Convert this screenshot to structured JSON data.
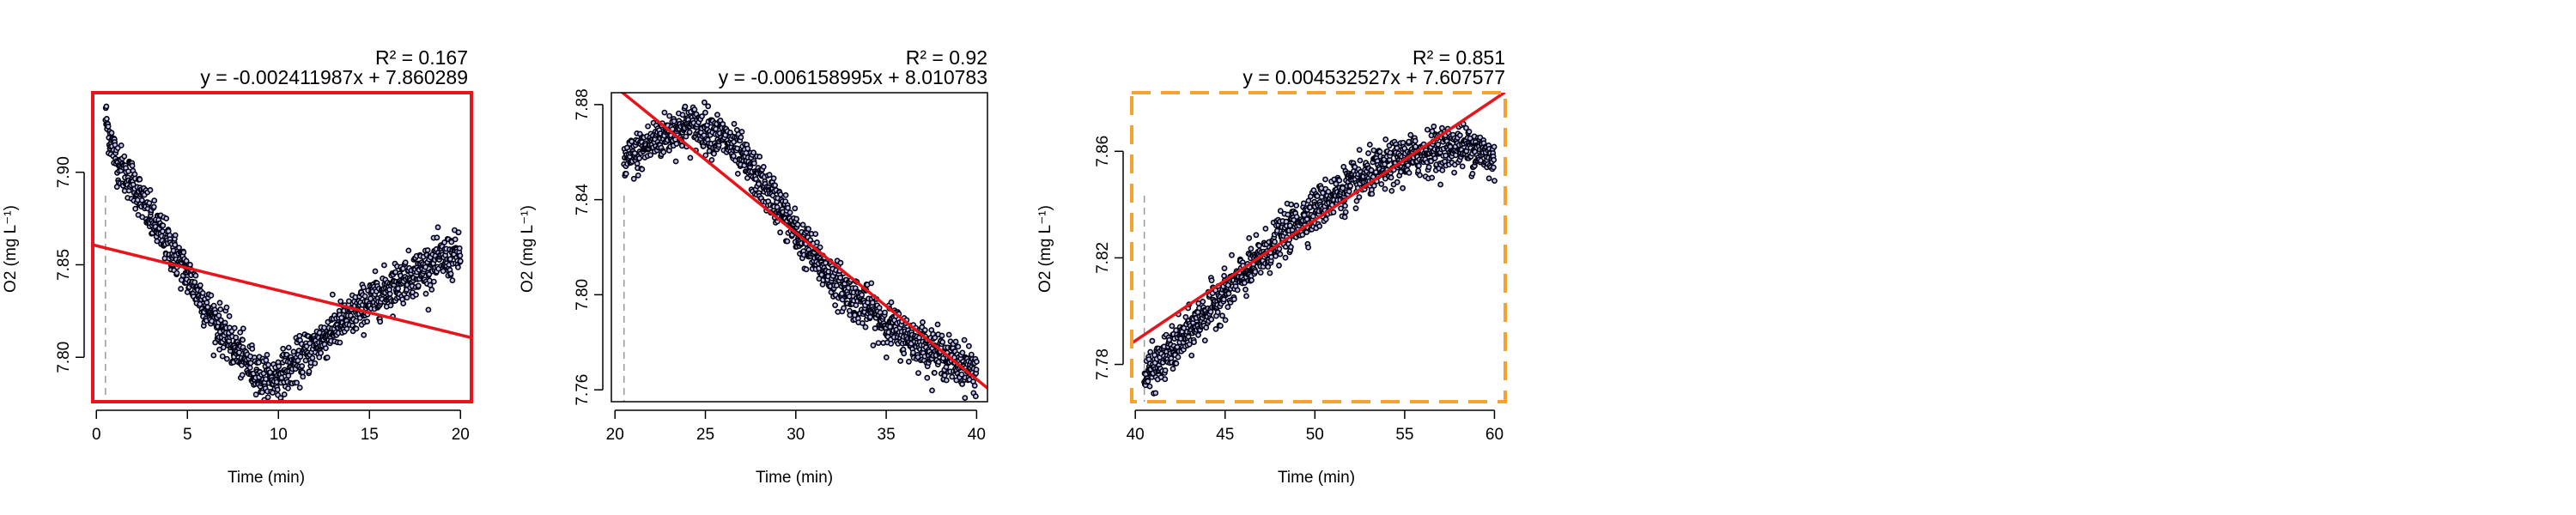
{
  "chart_data": [
    {
      "type": "scatter",
      "title": "",
      "xlabel": "Time (min)",
      "ylabel": "O2 (mg L⁻¹)",
      "xlim": [
        -0.2,
        20.6
      ],
      "ylim": [
        7.776,
        7.943
      ],
      "xticks": [
        0,
        5,
        10,
        15,
        20
      ],
      "yticks": [
        7.8,
        7.85,
        7.9
      ],
      "ytick_labels": [
        "7.80",
        "7.85",
        "7.90"
      ],
      "r2_label": "R² = 0.167",
      "equation_label": "y = -0.002411987x + 7.860289",
      "fit": {
        "slope": -0.002411987,
        "intercept": 7.860289
      },
      "vline_x": 0.5,
      "frame": {
        "color": "#e8141b",
        "style": "solid"
      },
      "series": [
        {
          "x": [
            0.5,
            0.6,
            1,
            1.5,
            2,
            3,
            4,
            5,
            6,
            7,
            8,
            9,
            9.5,
            10,
            11,
            12,
            13,
            14,
            15,
            16,
            17,
            18,
            19,
            20
          ],
          "y": [
            7.93,
            7.925,
            7.91,
            7.9,
            7.895,
            7.875,
            7.86,
            7.845,
            7.828,
            7.813,
            7.8,
            7.79,
            7.787,
            7.79,
            7.797,
            7.806,
            7.815,
            7.822,
            7.83,
            7.837,
            7.843,
            7.848,
            7.853,
            7.856
          ]
        }
      ]
    },
    {
      "type": "scatter",
      "title": "",
      "xlabel": "Time (min)",
      "ylabel": "O2 (mg L⁻¹)",
      "xlim": [
        19.8,
        40.6
      ],
      "ylim": [
        7.755,
        7.885
      ],
      "xticks": [
        20,
        25,
        30,
        35,
        40
      ],
      "yticks": [
        7.76,
        7.8,
        7.84,
        7.88
      ],
      "ytick_labels": [
        "7.76",
        "7.80",
        "7.84",
        "7.88"
      ],
      "r2_label": "R² = 0.92",
      "equation_label": "y = -0.006158995x + 8.010783",
      "fit": {
        "slope": -0.006158995,
        "intercept": 8.010783
      },
      "vline_x": 20.5,
      "frame": {
        "color": "#000000",
        "style": "thin"
      },
      "series": [
        {
          "x": [
            20.5,
            21,
            22,
            23,
            24,
            25,
            26,
            27,
            28,
            29,
            30,
            31,
            32,
            33,
            34,
            35,
            36,
            37,
            38,
            39,
            40
          ],
          "y": [
            7.855,
            7.858,
            7.864,
            7.868,
            7.871,
            7.87,
            7.866,
            7.858,
            7.848,
            7.838,
            7.826,
            7.816,
            7.807,
            7.8,
            7.794,
            7.788,
            7.783,
            7.779,
            7.775,
            7.771,
            7.768
          ]
        }
      ]
    },
    {
      "type": "scatter",
      "title": "",
      "xlabel": "Time (min)",
      "ylabel": "O2 (mg L⁻¹)",
      "xlim": [
        39.8,
        60.6
      ],
      "ylim": [
        7.766,
        7.882
      ],
      "xticks": [
        40,
        45,
        50,
        55,
        60
      ],
      "yticks": [
        7.78,
        7.82,
        7.86
      ],
      "ytick_labels": [
        "7.78",
        "7.82",
        "7.86"
      ],
      "r2_label": "R² = 0.851",
      "equation_label": "y = 0.004532527x + 7.607577",
      "fit": {
        "slope": 0.004532527,
        "intercept": 7.607577
      },
      "vline_x": 40.5,
      "frame": {
        "color": "#f4a330",
        "style": "dashed"
      },
      "series": [
        {
          "x": [
            40.5,
            41,
            42,
            43,
            44,
            45,
            46,
            47,
            48,
            49,
            50,
            51,
            52,
            53,
            54,
            55,
            56,
            57,
            58,
            59,
            60
          ],
          "y": [
            7.775,
            7.778,
            7.785,
            7.792,
            7.8,
            7.807,
            7.813,
            7.82,
            7.827,
            7.833,
            7.838,
            7.843,
            7.847,
            7.851,
            7.854,
            7.857,
            7.859,
            7.861,
            7.862,
            7.861,
            7.856
          ]
        }
      ]
    }
  ]
}
